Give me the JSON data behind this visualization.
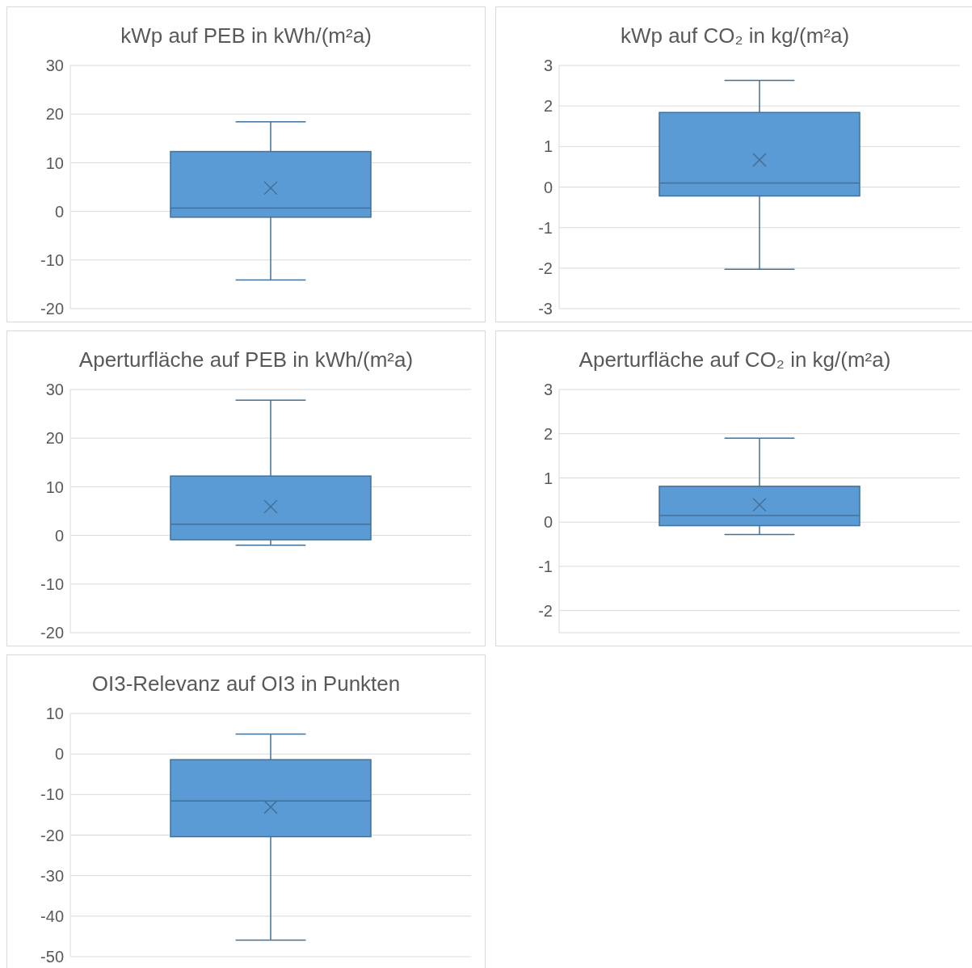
{
  "chart_data": [
    {
      "type": "box",
      "title": "kWp auf PEB in kWh/(m²a)",
      "categories": [
        null
      ],
      "boxes": [
        {
          "low": -14.1,
          "q1": -1.2,
          "median": 0.7,
          "q3": 12.3,
          "high": 18.4,
          "mean": 4.8
        }
      ],
      "color": "#5b9bd5",
      "ylim": [
        -20,
        30
      ],
      "yticks": [
        -20,
        -10,
        0,
        10,
        20,
        30
      ],
      "grid": "y",
      "tick_labels": "y"
    },
    {
      "type": "box",
      "title": "kWp auf CO₂ in kg/(m²a)",
      "categories": [
        null
      ],
      "boxes": [
        {
          "low": -2.03,
          "q1": -0.22,
          "median": 0.1,
          "q3": 1.84,
          "high": 2.63,
          "mean": 0.67
        }
      ],
      "color": "#5b9bd5",
      "ylim": [
        -3,
        3
      ],
      "yticks": [
        -3,
        -2,
        -1,
        0,
        1,
        2,
        3
      ],
      "grid": "y",
      "tick_labels": "y"
    },
    {
      "type": "box",
      "title": "Aperturfläche auf PEB in kWh/(m²a)",
      "categories": [
        null
      ],
      "boxes": [
        {
          "low": -2.0,
          "q1": -0.9,
          "median": 2.3,
          "q3": 12.2,
          "high": 27.8,
          "mean": 5.9
        }
      ],
      "color": "#5b9bd5",
      "ylim": [
        -20,
        30
      ],
      "yticks": [
        -20,
        -10,
        0,
        10,
        20,
        30
      ],
      "grid": "y",
      "tick_labels": "y"
    },
    {
      "type": "box",
      "title": "Aperturfläche auf CO₂ in kg/(m²a)",
      "categories": [
        null
      ],
      "boxes": [
        {
          "low": -0.28,
          "q1": -0.08,
          "median": 0.15,
          "q3": 0.81,
          "high": 1.9,
          "mean": 0.39
        }
      ],
      "color": "#5b9bd5",
      "ylim": [
        -2.5,
        3
      ],
      "yticks": [
        -2,
        -1,
        0,
        1,
        2,
        3
      ],
      "grid": "y",
      "tick_labels": "y"
    },
    {
      "type": "box",
      "title": "OI3-Relevanz auf OI3 in Punkten",
      "categories": [
        null
      ],
      "boxes": [
        {
          "low": -45.9,
          "q1": -20.4,
          "median": -11.6,
          "q3": -1.4,
          "high": 4.9,
          "mean": -13.1
        }
      ],
      "color": "#5b9bd5",
      "ylim": [
        -50,
        10
      ],
      "yticks": [
        -50,
        -40,
        -30,
        -20,
        -10,
        0,
        10
      ],
      "grid": "y",
      "tick_labels": "y"
    }
  ]
}
